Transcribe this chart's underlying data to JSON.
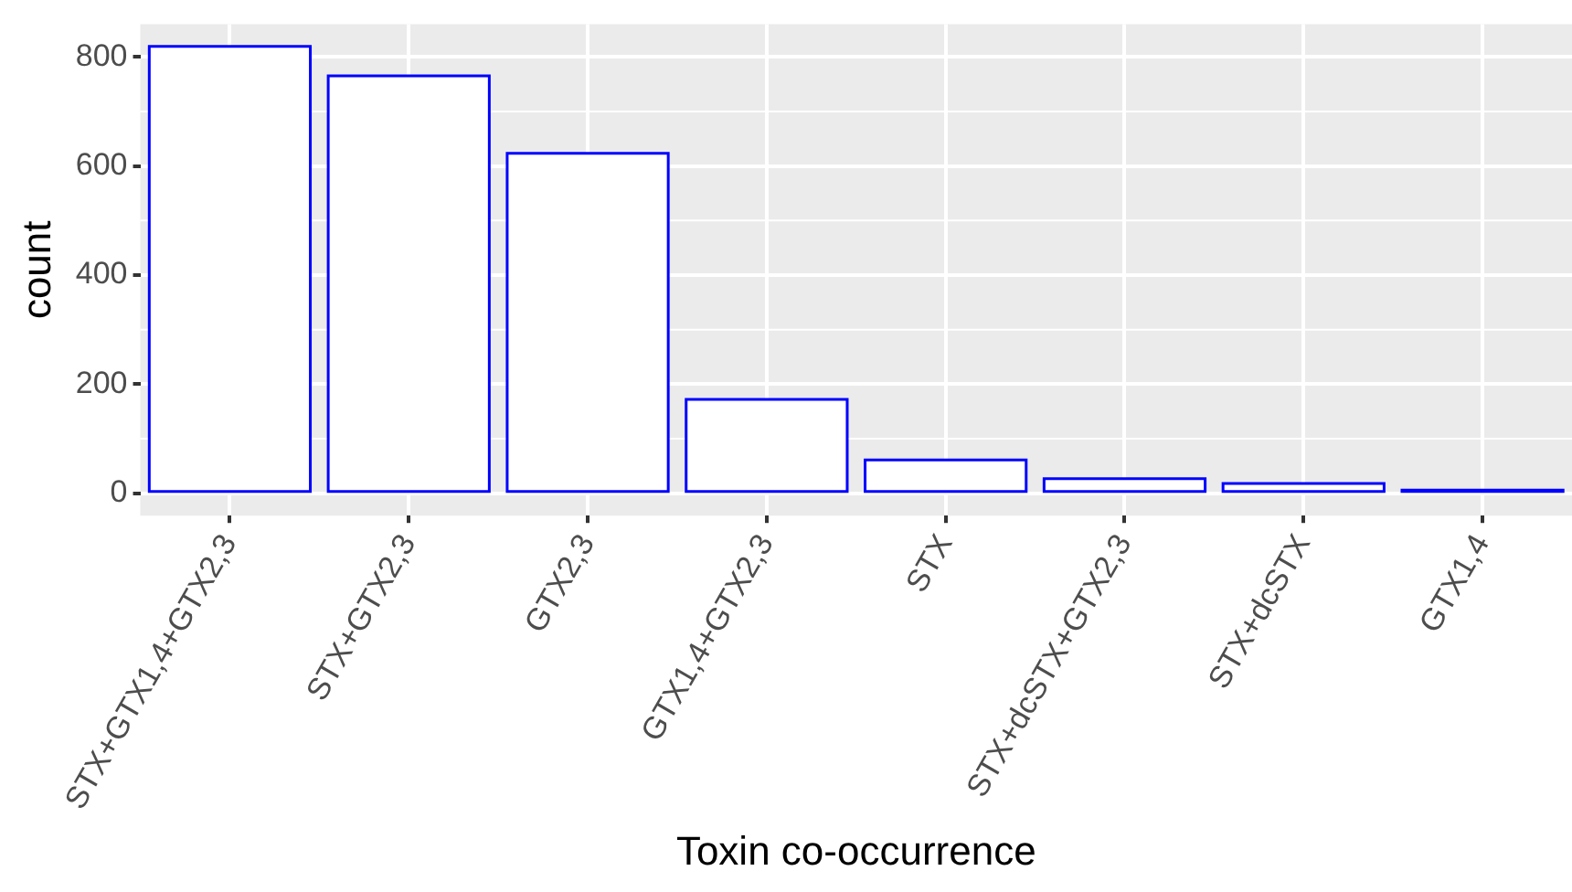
{
  "chart_data": {
    "type": "bar",
    "xlabel": "Toxin co-occurrence",
    "ylabel": "count",
    "categories": [
      "STX+GTX1,4+GTX2,3",
      "STX+GTX2,3",
      "GTX2,3",
      "GTX1,4+GTX2,3",
      "STX",
      "STX+dcSTX+GTX2,3",
      "STX+dcSTX",
      "GTX1,4"
    ],
    "series": [
      {
        "color": "#ffffff",
        "values": [
          819,
          765,
          623,
          172,
          61,
          27,
          18,
          6
        ]
      }
    ],
    "ylim": [
      -41,
      860
    ],
    "yticks": [
      0,
      200,
      400,
      600,
      800
    ],
    "grid": true,
    "legend": false
  }
}
